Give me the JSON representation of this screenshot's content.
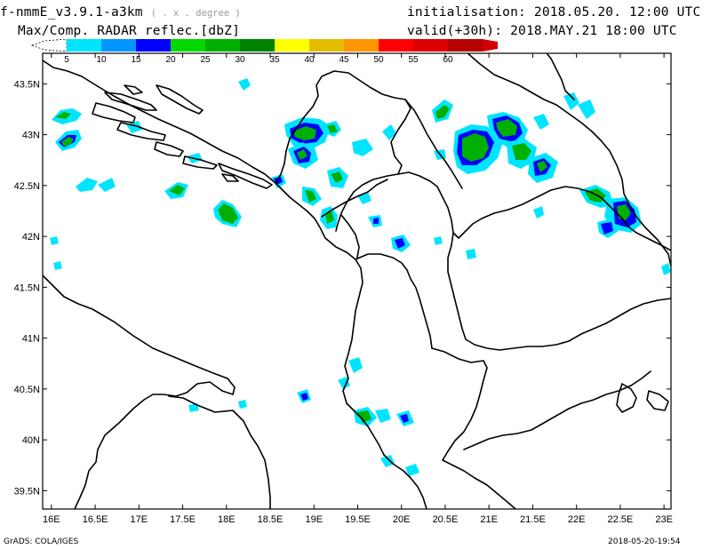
{
  "header": {
    "model": "f-nmmE_v3.9.1-a3km",
    "model_suffix": "( . x . degree )",
    "variable": "Max/Comp. RADAR reflec.[dbZ]",
    "init_label": "initialisation:",
    "init_value": "2018.05.20. 12:00 UTC",
    "valid_label": "valid(+30h):",
    "valid_value": "2018.MAY.21  18:00 UTC"
  },
  "colorbar": {
    "labels": [
      "5",
      "10",
      "15",
      "20",
      "25",
      "30",
      "35",
      "40",
      "45",
      "50",
      "55",
      "60"
    ],
    "colors": [
      "#00e5ff",
      "#0096ff",
      "#0000ff",
      "#00d800",
      "#00b000",
      "#008400",
      "#ffff00",
      "#e5bd00",
      "#ff9500",
      "#ff0000",
      "#dc0000",
      "#b40000",
      "#d00000"
    ]
  },
  "map": {
    "lon_labels": [
      "16E",
      "16.5E",
      "17E",
      "17.5E",
      "18E",
      "18.5E",
      "19E",
      "19.5E",
      "20E",
      "20.5E",
      "21E",
      "21.5E",
      "22E",
      "22.5E",
      "23E"
    ],
    "lat_labels": [
      "43.5N",
      "43N",
      "42.5N",
      "42N",
      "41.5N",
      "41N",
      "40.5N",
      "40N",
      "39.5N"
    ]
  },
  "footer": {
    "left": "GrADS: COLA/IGES",
    "right": "2018-05-20-19:54"
  }
}
